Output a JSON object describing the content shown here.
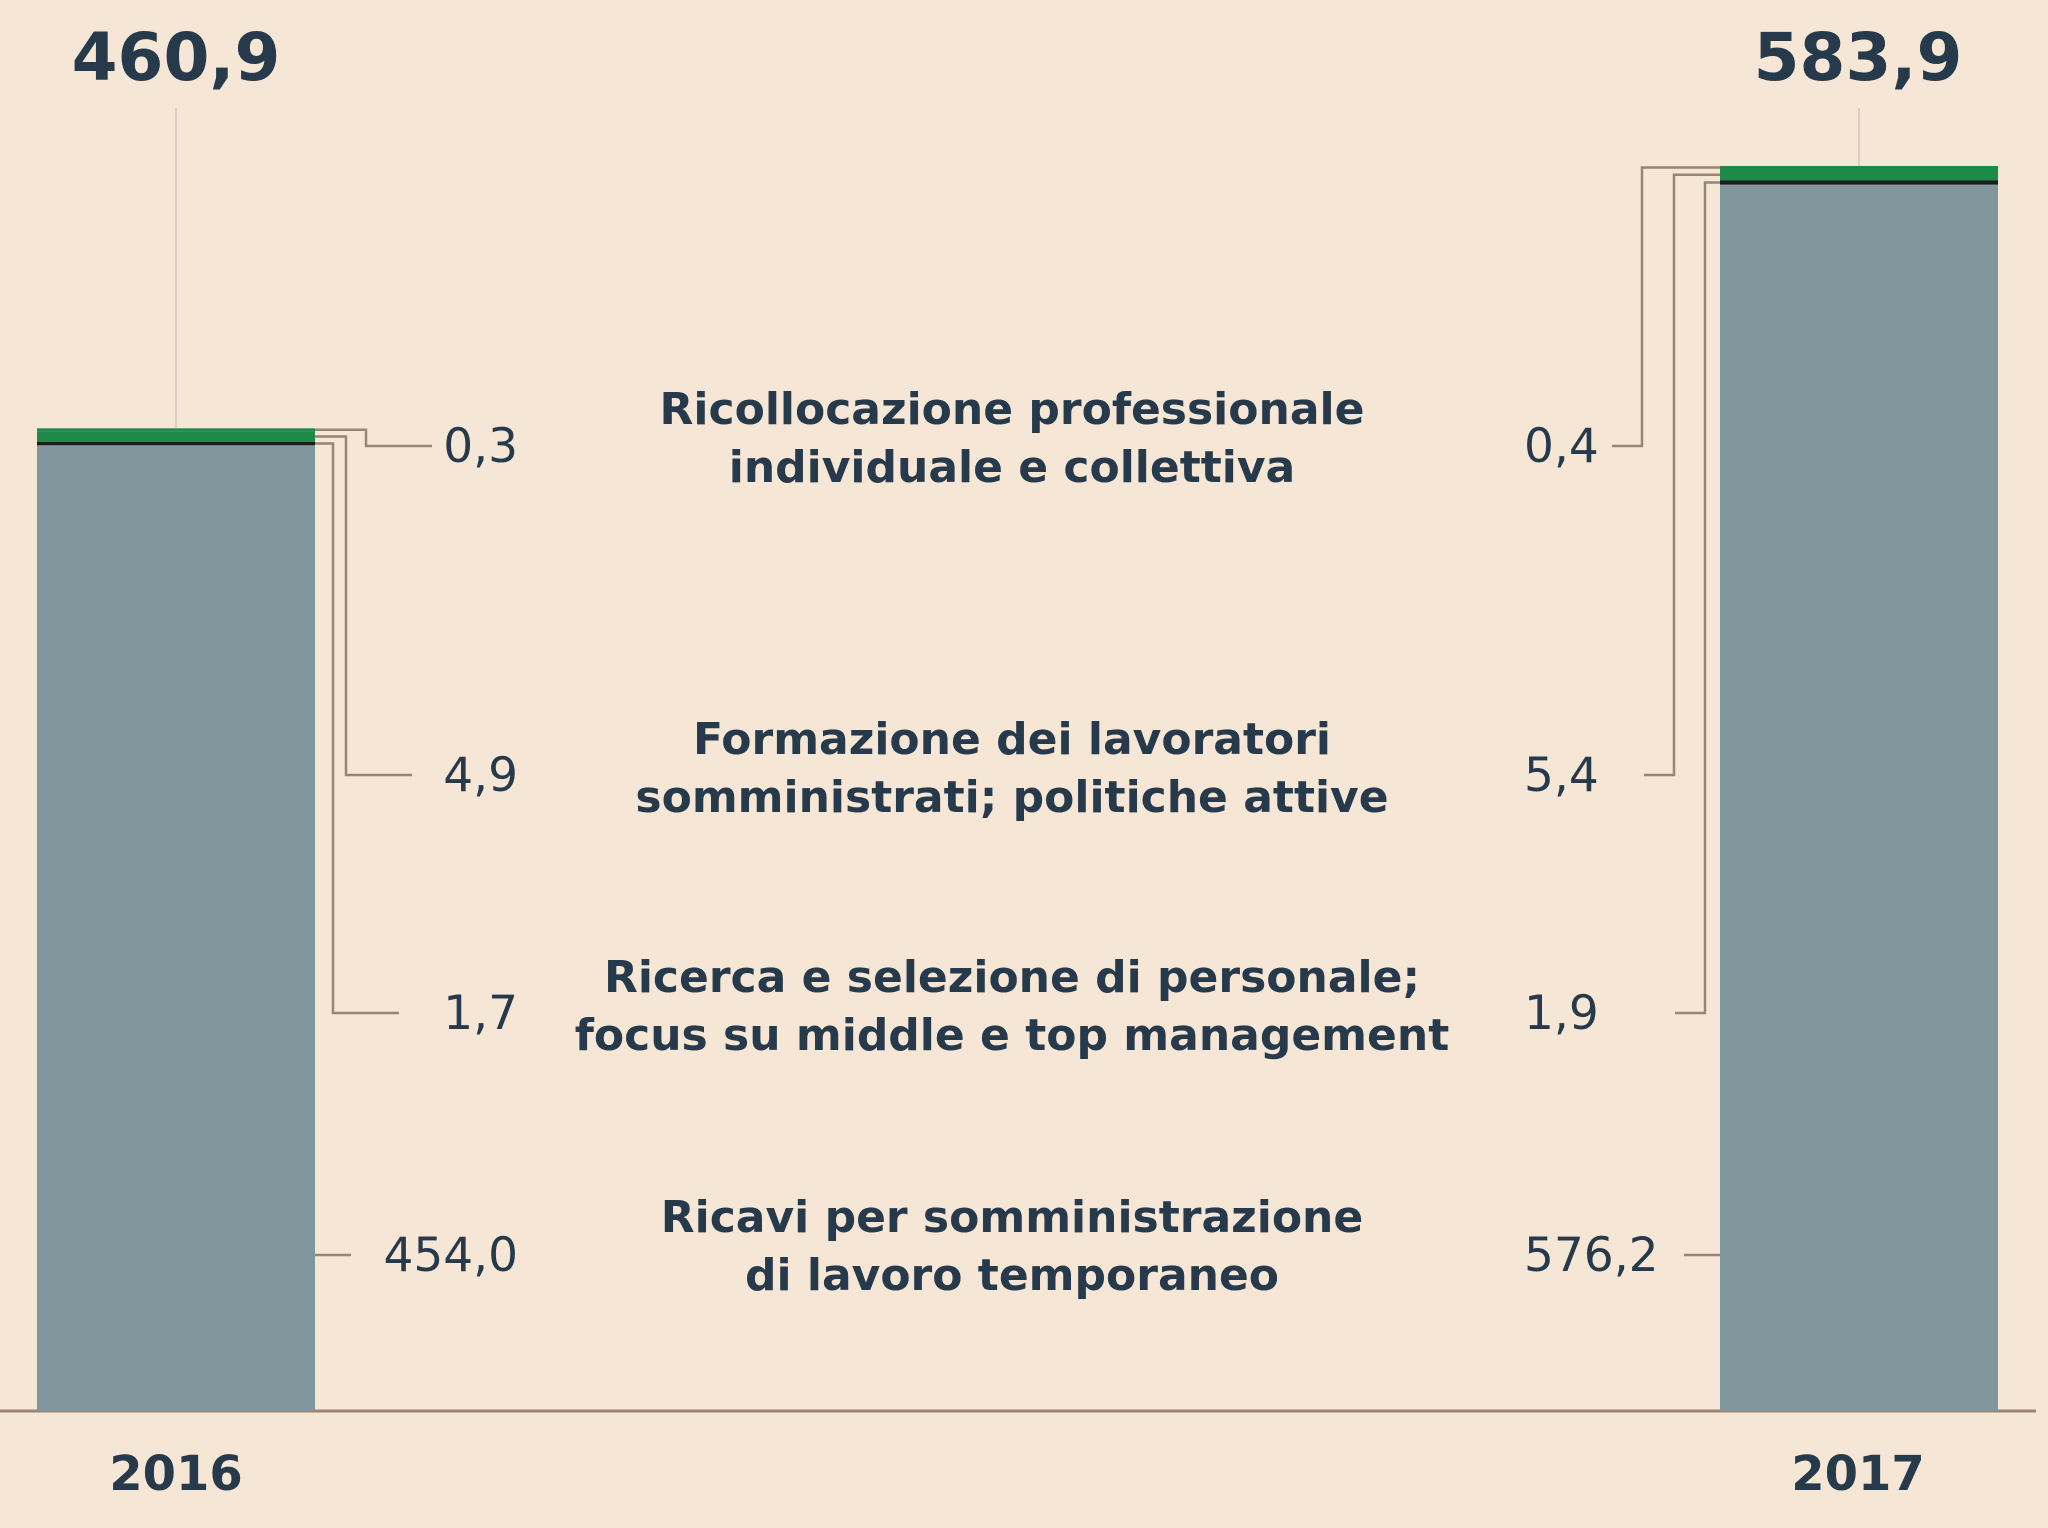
{
  "chart_data": {
    "type": "bar",
    "stacked": true,
    "categories": [
      "2016",
      "2017"
    ],
    "totals": [
      "460,9",
      "583,9"
    ],
    "series": [
      {
        "name": "Ricavi per somministrazione di lavoro temporaneo",
        "label_lines": [
          "Ricavi per somministrazione",
          "di lavoro temporaneo"
        ],
        "values": [
          454.0,
          576.2
        ],
        "value_labels": [
          "454,0",
          "576,2"
        ],
        "color": "#7f979d"
      },
      {
        "name": "Ricerca e selezione di personale; focus su middle e top management",
        "label_lines": [
          "Ricerca e selezione di personale;",
          "focus su middle e top management"
        ],
        "values": [
          1.7,
          1.9
        ],
        "value_labels": [
          "1,7",
          "1,9"
        ],
        "color": "#1c1c1c"
      },
      {
        "name": "Formazione dei lavoratori somministrati; politiche attive",
        "label_lines": [
          "Formazione dei lavoratori",
          "somministrati; politiche attive"
        ],
        "values": [
          4.9,
          5.4
        ],
        "value_labels": [
          "4,9",
          "5,4"
        ],
        "color": "#1e8a4a"
      },
      {
        "name": "Ricollocazione professionale individuale e collettiva",
        "label_lines": [
          "Ricollocazione professionale",
          "individuale e collettiva"
        ],
        "values": [
          0.3,
          0.4
        ],
        "value_labels": [
          "0,3",
          "0,4"
        ],
        "color": "#1e8a4a"
      }
    ],
    "ylim": [
      0,
      583.9
    ],
    "grid": false,
    "legend": "none",
    "title": "",
    "xlabel": "",
    "ylabel": ""
  }
}
